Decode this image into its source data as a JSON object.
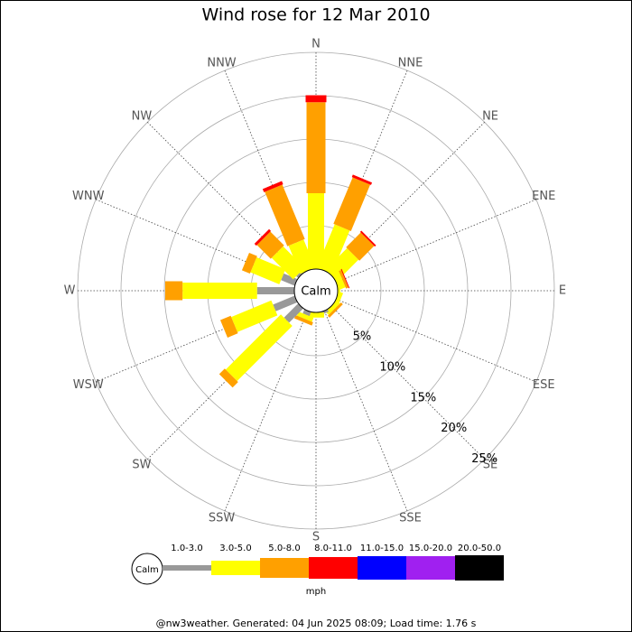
{
  "chart_data": {
    "type": "wind-rose",
    "title": "Wind rose for 12 Mar 2010",
    "directions": [
      "N",
      "NNE",
      "NE",
      "ENE",
      "E",
      "ESE",
      "SE",
      "SSE",
      "S",
      "SSW",
      "SW",
      "WSW",
      "W",
      "WNW",
      "NW",
      "NNW"
    ],
    "series": [
      {
        "name": "1.0-3.0",
        "color": "#999999",
        "values": [
          0,
          0,
          0,
          0,
          0,
          0,
          0,
          0.3,
          0,
          0.5,
          2.3,
          2.7,
          4.3,
          1.7,
          0.3,
          0
        ]
      },
      {
        "name": "3.0-5.0",
        "color": "#ffff00",
        "values": [
          8.75,
          5.4,
          3.5,
          0.8,
          0.3,
          0.5,
          0.5,
          0,
          0.6,
          0.5,
          9.0,
          5.0,
          8.6,
          3.6,
          3.5,
          3.5
        ]
      },
      {
        "name": "5.0-8.0",
        "color": "#ffa000",
        "values": [
          10.5,
          5.8,
          2.4,
          0.3,
          0,
          0,
          0.3,
          0,
          0,
          0.4,
          0.9,
          1.3,
          2.0,
          1.0,
          2.25,
          6.8
        ]
      },
      {
        "name": "8.0-11.0",
        "color": "#ff0000",
        "values": [
          0.8,
          0.3,
          0.2,
          0.1,
          0,
          0,
          0,
          0,
          0,
          0,
          0,
          0,
          0,
          0,
          0.3,
          0.4
        ]
      },
      {
        "name": "11.0-15.0",
        "color": "#0000ff",
        "values": [
          0,
          0,
          0,
          0,
          0,
          0,
          0,
          0,
          0,
          0,
          0,
          0,
          0,
          0,
          0,
          0
        ]
      },
      {
        "name": "15.0-20.0",
        "color": "#a020f0",
        "values": [
          0,
          0,
          0,
          0,
          0,
          0,
          0,
          0,
          0,
          0,
          0,
          0,
          0,
          0,
          0,
          0
        ]
      },
      {
        "name": "20.0-50.0",
        "color": "#000000",
        "values": [
          0,
          0,
          0,
          0,
          0,
          0,
          0,
          0,
          0,
          0,
          0,
          0,
          0,
          0,
          0,
          0
        ]
      }
    ],
    "calm_label": "Calm",
    "unit_label": "mph",
    "rlim": [
      0,
      25
    ],
    "rticks": [
      {
        "value": 5,
        "label": "5%"
      },
      {
        "value": 10,
        "label": "10%"
      },
      {
        "value": 15,
        "label": "15%"
      },
      {
        "value": 20,
        "label": "20%"
      },
      {
        "value": 25,
        "label": "25%"
      }
    ],
    "footer": "@nw3weather. Generated: 04 Jun 2025 08:09; Load time: 1.76 s"
  }
}
